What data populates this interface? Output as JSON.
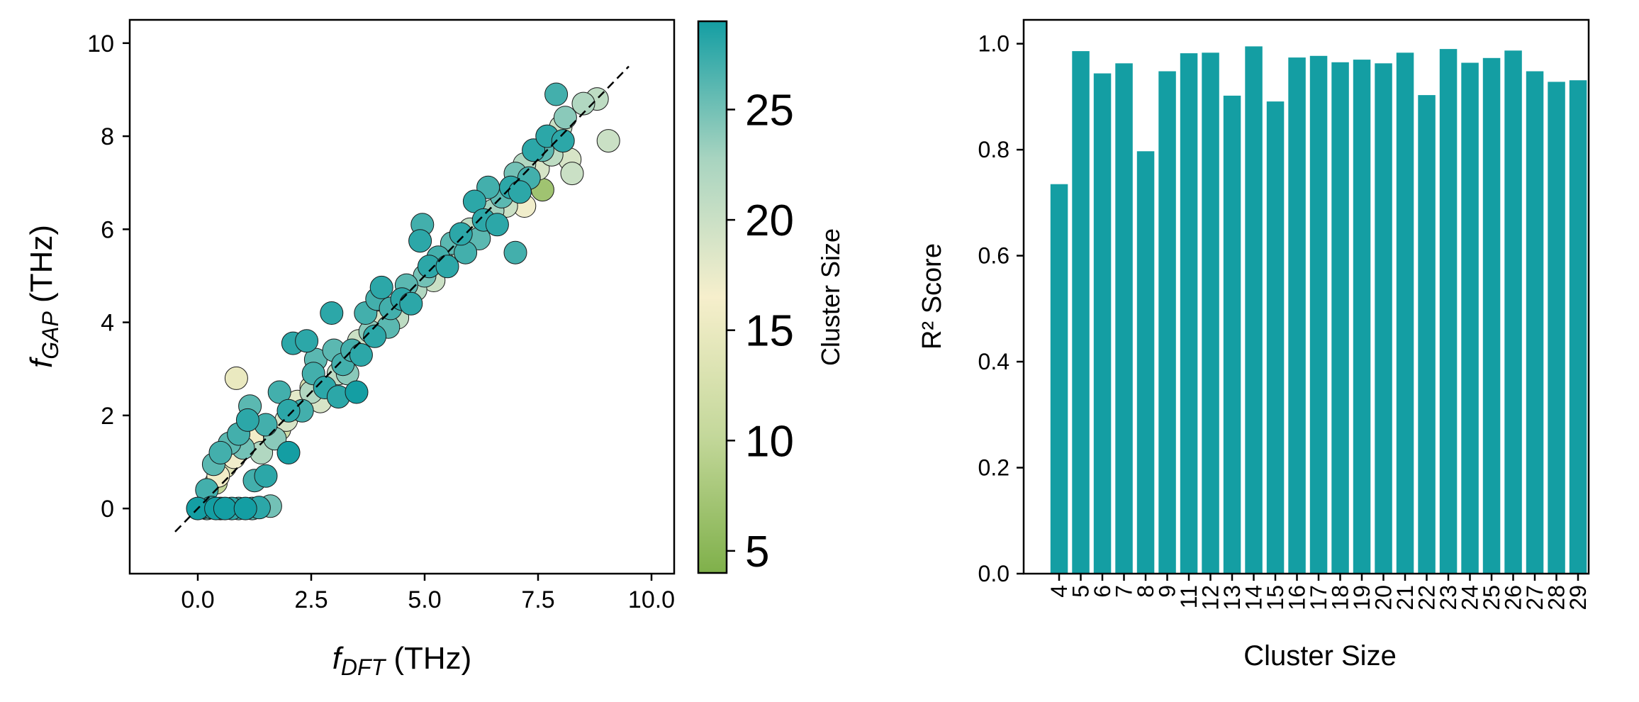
{
  "chart_data": [
    {
      "type": "scatter",
      "xlabel_main": "f",
      "xlabel_sub": "DFT",
      "xlabel_unit": " (THz)",
      "ylabel_main": "f",
      "ylabel_sub": "GAP",
      "ylabel_unit": " (THz)",
      "xlim": [
        -1.5,
        10.5
      ],
      "ylim": [
        -1.4,
        10.5
      ],
      "xticks": [
        0.0,
        2.5,
        5.0,
        7.5,
        10.0
      ],
      "xtick_labels": [
        "0.0",
        "2.5",
        "5.0",
        "7.5",
        "10.0"
      ],
      "yticks": [
        0,
        2,
        4,
        6,
        8,
        10
      ],
      "ytick_labels": [
        "0",
        "2",
        "4",
        "6",
        "8",
        "10"
      ],
      "reference_line": {
        "style": "dashed",
        "from": [
          -0.5,
          -0.5
        ],
        "to": [
          9.5,
          9.5
        ]
      },
      "colorbar": {
        "label": "Cluster Size",
        "range": [
          4,
          29
        ],
        "ticks": [
          5,
          10,
          15,
          20,
          25
        ],
        "tick_labels": [
          "5",
          "10",
          "15",
          "20",
          "25"
        ],
        "colormap": [
          "#7fb04a",
          "#c4d89b",
          "#f6efcc",
          "#a8d4c0",
          "#149ea3"
        ]
      },
      "series": [
        {
          "points": [
            [
              0.0,
              0.0,
              29
            ],
            [
              0.1,
              0.02,
              27
            ],
            [
              0.2,
              0.0,
              25
            ],
            [
              0.3,
              0.02,
              28
            ],
            [
              0.4,
              0.0,
              29
            ],
            [
              0.5,
              0.0,
              26
            ],
            [
              0.6,
              0.0,
              29
            ],
            [
              0.75,
              0.0,
              28
            ],
            [
              0.9,
              0.0,
              27
            ],
            [
              1.05,
              0.0,
              29
            ],
            [
              1.2,
              0.0,
              26
            ],
            [
              1.35,
              0.02,
              28
            ],
            [
              1.6,
              0.05,
              25
            ],
            [
              0.2,
              0.4,
              27
            ],
            [
              0.35,
              0.95,
              26
            ],
            [
              0.45,
              0.7,
              16
            ],
            [
              0.5,
              1.2,
              27
            ],
            [
              0.6,
              0.9,
              14
            ],
            [
              0.7,
              1.4,
              26
            ],
            [
              0.8,
              1.1,
              17
            ],
            [
              0.9,
              1.6,
              27
            ],
            [
              0.85,
              2.8,
              15
            ],
            [
              1.0,
              1.3,
              25
            ],
            [
              1.1,
              1.9,
              28
            ],
            [
              1.15,
              2.2,
              26
            ],
            [
              1.2,
              1.5,
              16
            ],
            [
              1.25,
              0.6,
              27
            ],
            [
              1.4,
              1.2,
              22
            ],
            [
              1.5,
              1.8,
              27
            ],
            [
              1.5,
              0.7,
              28
            ],
            [
              1.7,
              1.5,
              24
            ],
            [
              1.8,
              2.5,
              27
            ],
            [
              1.95,
              1.9,
              19
            ],
            [
              2.0,
              2.1,
              28
            ],
            [
              2.0,
              1.2,
              29
            ],
            [
              2.1,
              3.55,
              28
            ],
            [
              2.2,
              2.3,
              18
            ],
            [
              2.3,
              2.1,
              27
            ],
            [
              2.4,
              3.6,
              28
            ],
            [
              2.5,
              2.5,
              22
            ],
            [
              2.55,
              2.9,
              27
            ],
            [
              2.6,
              3.2,
              26
            ],
            [
              2.7,
              2.3,
              19
            ],
            [
              2.8,
              2.6,
              28
            ],
            [
              2.95,
              4.2,
              28
            ],
            [
              3.0,
              3.4,
              26
            ],
            [
              3.1,
              2.9,
              21
            ],
            [
              3.1,
              2.4,
              28
            ],
            [
              3.2,
              3.1,
              27
            ],
            [
              3.3,
              2.9,
              24
            ],
            [
              3.4,
              3.4,
              27
            ],
            [
              3.5,
              2.5,
              29
            ],
            [
              3.55,
              3.6,
              20
            ],
            [
              3.6,
              3.3,
              28
            ],
            [
              3.7,
              4.2,
              27
            ],
            [
              3.8,
              3.8,
              24
            ],
            [
              3.9,
              3.7,
              28
            ],
            [
              3.95,
              4.5,
              27
            ],
            [
              4.0,
              4.0,
              19
            ],
            [
              4.05,
              4.75,
              28
            ],
            [
              4.2,
              3.9,
              26
            ],
            [
              4.25,
              4.3,
              27
            ],
            [
              4.4,
              4.1,
              21
            ],
            [
              4.5,
              4.5,
              28
            ],
            [
              4.6,
              4.8,
              26
            ],
            [
              4.7,
              4.4,
              28
            ],
            [
              4.8,
              4.7,
              22
            ],
            [
              4.9,
              5.75,
              28
            ],
            [
              4.95,
              6.1,
              27
            ],
            [
              5.0,
              5.0,
              25
            ],
            [
              5.1,
              5.2,
              28
            ],
            [
              5.2,
              4.9,
              20
            ],
            [
              5.3,
              5.4,
              27
            ],
            [
              5.4,
              5.3,
              24
            ],
            [
              5.5,
              5.2,
              28
            ],
            [
              5.6,
              5.7,
              26
            ],
            [
              5.7,
              5.6,
              19
            ],
            [
              5.8,
              5.9,
              28
            ],
            [
              5.9,
              5.5,
              27
            ],
            [
              6.0,
              6.0,
              21
            ],
            [
              6.1,
              6.6,
              28
            ],
            [
              6.2,
              5.8,
              26
            ],
            [
              6.3,
              6.2,
              28
            ],
            [
              6.4,
              6.9,
              27
            ],
            [
              6.5,
              6.4,
              23
            ],
            [
              6.6,
              6.1,
              28
            ],
            [
              6.7,
              6.7,
              26
            ],
            [
              6.8,
              6.5,
              20
            ],
            [
              6.9,
              6.9,
              28
            ],
            [
              7.0,
              5.5,
              27
            ],
            [
              7.0,
              7.2,
              25
            ],
            [
              7.1,
              6.8,
              28
            ],
            [
              7.2,
              7.4,
              22
            ],
            [
              7.3,
              7.1,
              27
            ],
            [
              7.4,
              7.7,
              28
            ],
            [
              7.5,
              7.3,
              19
            ],
            [
              7.6,
              7.7,
              26
            ],
            [
              7.7,
              8.0,
              28
            ],
            [
              7.8,
              7.6,
              21
            ],
            [
              7.9,
              8.9,
              27
            ],
            [
              8.0,
              8.2,
              20
            ],
            [
              8.05,
              7.9,
              28
            ],
            [
              8.1,
              8.4,
              24
            ],
            [
              8.2,
              7.5,
              19
            ],
            [
              8.25,
              7.2,
              20
            ],
            [
              8.5,
              8.7,
              22
            ],
            [
              8.8,
              8.8,
              21
            ],
            [
              9.05,
              7.9,
              20
            ],
            [
              5.5,
              5.4,
              22
            ],
            [
              6.6,
              6.4,
              15
            ],
            [
              4.6,
              4.5,
              17
            ],
            [
              3.3,
              3.3,
              16
            ],
            [
              7.2,
              6.5,
              17
            ],
            [
              2.5,
              2.6,
              13
            ],
            [
              1.8,
              1.7,
              12
            ],
            [
              0.4,
              0.55,
              10
            ],
            [
              7.6,
              6.85,
              7
            ]
          ]
        }
      ]
    },
    {
      "type": "bar",
      "xlabel": "Cluster Size",
      "ylabel": "R² Score",
      "ylim": [
        0.0,
        1.045
      ],
      "yticks": [
        0.0,
        0.2,
        0.4,
        0.6,
        0.8,
        1.0
      ],
      "ytick_labels": [
        "0.0",
        "0.2",
        "0.4",
        "0.6",
        "0.8",
        "1.0"
      ],
      "bar_color": "#149ea3",
      "categories": [
        "4",
        "5",
        "6",
        "7",
        "8",
        "9",
        "11",
        "12",
        "13",
        "14",
        "15",
        "16",
        "17",
        "18",
        "19",
        "20",
        "21",
        "22",
        "23",
        "24",
        "25",
        "26",
        "27",
        "28",
        "29"
      ],
      "values": [
        0.735,
        0.986,
        0.944,
        0.963,
        0.797,
        0.948,
        0.982,
        0.983,
        0.902,
        0.995,
        0.891,
        0.974,
        0.977,
        0.965,
        0.97,
        0.963,
        0.983,
        0.903,
        0.99,
        0.964,
        0.973,
        0.987,
        0.948,
        0.928,
        0.931
      ]
    }
  ]
}
